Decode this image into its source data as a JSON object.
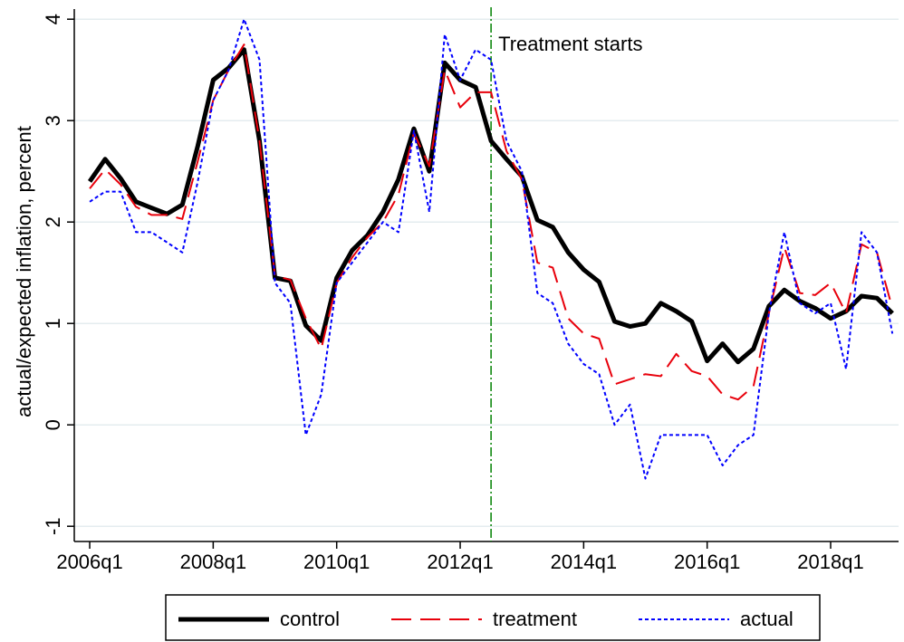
{
  "chart_data": {
    "type": "line",
    "y_label": "actual/expected inflation, percent",
    "x": [
      2006,
      2006.25,
      2006.5,
      2006.75,
      2007,
      2007.25,
      2007.5,
      2007.75,
      2008,
      2008.25,
      2008.5,
      2008.75,
      2009,
      2009.25,
      2009.5,
      2009.75,
      2010,
      2010.25,
      2010.5,
      2010.75,
      2011,
      2011.25,
      2011.5,
      2011.75,
      2012,
      2012.25,
      2012.5,
      2012.75,
      2013,
      2013.25,
      2013.5,
      2013.75,
      2014,
      2014.25,
      2014.5,
      2014.75,
      2015,
      2015.25,
      2015.5,
      2015.75,
      2016,
      2016.25,
      2016.5,
      2016.75,
      2017,
      2017.25,
      2017.5,
      2017.75,
      2018,
      2018.25,
      2018.5,
      2018.75,
      2019
    ],
    "xlim": [
      2005.75,
      2019.1
    ],
    "xticks": [
      {
        "value": 2006,
        "label": "2006q1"
      },
      {
        "value": 2008,
        "label": "2008q1"
      },
      {
        "value": 2010,
        "label": "2010q1"
      },
      {
        "value": 2012,
        "label": "2012q1"
      },
      {
        "value": 2014,
        "label": "2014q1"
      },
      {
        "value": 2016,
        "label": "2016q1"
      },
      {
        "value": 2018,
        "label": "2018q1"
      }
    ],
    "ylim": [
      -1.15,
      4.1
    ],
    "yticks": [
      -1,
      0,
      1,
      2,
      3,
      4
    ],
    "grid": true,
    "annotation": {
      "text": "Treatment starts",
      "x": 2012.5,
      "color": "#008000"
    },
    "series": [
      {
        "name": "control",
        "color": "#000000",
        "style": "solid",
        "values": [
          2.4,
          2.62,
          2.43,
          2.2,
          2.14,
          2.08,
          2.17,
          2.75,
          3.4,
          3.52,
          3.7,
          2.8,
          1.45,
          1.42,
          0.98,
          0.83,
          1.45,
          1.72,
          1.87,
          2.1,
          2.42,
          2.92,
          2.5,
          3.57,
          3.4,
          3.33,
          2.8,
          2.62,
          2.45,
          2.02,
          1.95,
          1.7,
          1.53,
          1.41,
          1.02,
          0.97,
          1.0,
          1.2,
          1.12,
          1.02,
          0.63,
          0.8,
          0.62,
          0.75,
          1.17,
          1.33,
          1.22,
          1.15,
          1.05,
          1.12,
          1.27,
          1.25,
          1.1
        ]
      },
      {
        "name": "treatment",
        "color": "#e8000b",
        "style": "dashed",
        "values": [
          2.33,
          2.52,
          2.37,
          2.15,
          2.07,
          2.07,
          2.03,
          2.6,
          3.2,
          3.5,
          3.75,
          2.8,
          1.47,
          1.43,
          1.05,
          0.75,
          1.4,
          1.65,
          1.85,
          2.0,
          2.27,
          2.88,
          2.55,
          3.5,
          3.13,
          3.28,
          3.28,
          2.7,
          2.42,
          1.6,
          1.55,
          1.05,
          0.9,
          0.85,
          0.4,
          0.45,
          0.5,
          0.48,
          0.7,
          0.53,
          0.48,
          0.3,
          0.25,
          0.38,
          1.1,
          1.75,
          1.3,
          1.28,
          1.4,
          1.1,
          1.78,
          1.7,
          1.15
        ]
      },
      {
        "name": "actual",
        "color": "#0000ff",
        "style": "dotted",
        "values": [
          2.2,
          2.3,
          2.3,
          1.9,
          1.9,
          1.8,
          1.7,
          2.4,
          3.2,
          3.5,
          4.0,
          3.6,
          1.4,
          1.2,
          -0.1,
          0.3,
          1.4,
          1.6,
          1.8,
          2.0,
          1.9,
          2.9,
          2.1,
          3.85,
          3.4,
          3.7,
          3.6,
          2.8,
          2.5,
          1.3,
          1.2,
          0.8,
          0.6,
          0.5,
          0.0,
          0.2,
          -0.53,
          -0.1,
          -0.1,
          -0.1,
          -0.1,
          -0.4,
          -0.2,
          -0.1,
          1.1,
          1.9,
          1.2,
          1.1,
          1.2,
          0.55,
          1.9,
          1.7,
          0.9
        ]
      }
    ]
  }
}
